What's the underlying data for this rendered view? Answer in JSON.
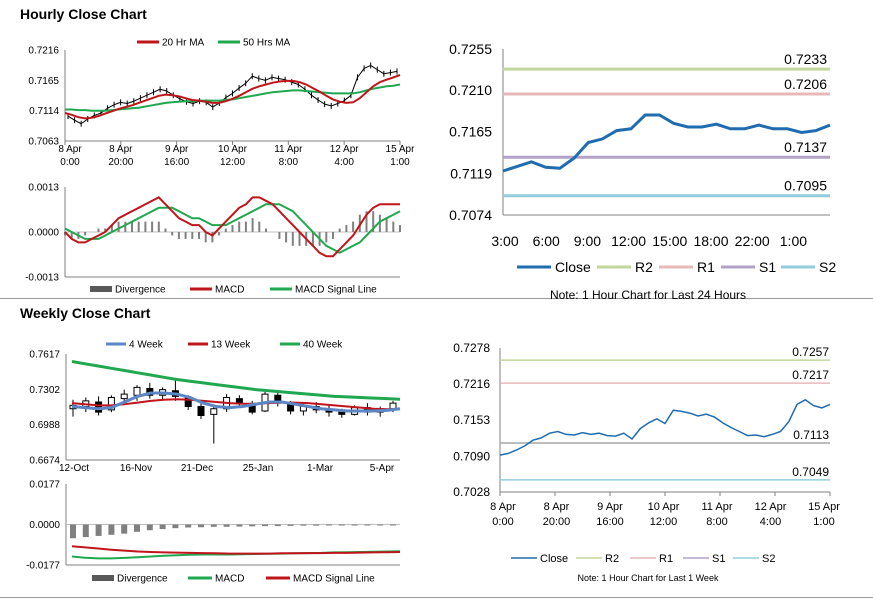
{
  "sections": {
    "hourly_title": "Hourly Close Chart",
    "weekly_title": "Weekly Close Chart"
  },
  "colors": {
    "ma20": "#c0151b",
    "ma50": "#1fa84f",
    "macd_red": "#c0151b",
    "macd_green": "#1fa84f",
    "close_blue": "#1f6cb0",
    "avg4_blue": "#5b87c6",
    "r2": "#c3d69b",
    "r1": "#e6b9b8",
    "s1": "#b3a2c7",
    "s2": "#93cddd",
    "bar_grey": "#808080"
  },
  "chart_data": [
    {
      "id": "hourly_price",
      "type": "line",
      "legend": [
        "20 Hr MA",
        "50 Hrs MA"
      ],
      "y_ticks": [
        "0.7216",
        "0.7165",
        "0.7114",
        "0.7063"
      ],
      "ylim": [
        0.7063,
        0.7216
      ],
      "x_ticks": [
        [
          "8 Apr",
          "0:00"
        ],
        [
          "8 Apr",
          "20:00"
        ],
        [
          "9 Apr",
          "16:00"
        ],
        [
          "10 Apr",
          "12:00"
        ],
        [
          "11 Apr",
          "8:00"
        ],
        [
          "12 Apr",
          "4:00"
        ],
        [
          "15 Apr",
          "1:00"
        ]
      ],
      "close": [
        0.7105,
        0.7098,
        0.7092,
        0.71,
        0.7106,
        0.711,
        0.7118,
        0.7124,
        0.7128,
        0.7126,
        0.713,
        0.7135,
        0.714,
        0.7145,
        0.715,
        0.7147,
        0.714,
        0.7134,
        0.7129,
        0.7126,
        0.713,
        0.7128,
        0.712,
        0.7127,
        0.7136,
        0.7143,
        0.7152,
        0.716,
        0.7172,
        0.7168,
        0.7165,
        0.717,
        0.7168,
        0.7166,
        0.7162,
        0.7158,
        0.715,
        0.714,
        0.7132,
        0.7125,
        0.7122,
        0.7126,
        0.7131,
        0.714,
        0.717,
        0.7185,
        0.719,
        0.7183,
        0.7176,
        0.7178,
        0.718
      ],
      "ma20": [
        0.711,
        0.7107,
        0.7103,
        0.7101,
        0.7102,
        0.7105,
        0.7109,
        0.7113,
        0.7117,
        0.712,
        0.7123,
        0.7127,
        0.7131,
        0.7135,
        0.7139,
        0.7141,
        0.714,
        0.7138,
        0.7135,
        0.7132,
        0.7131,
        0.7129,
        0.7127,
        0.7127,
        0.713,
        0.7134,
        0.7139,
        0.7145,
        0.7151,
        0.7155,
        0.7158,
        0.7161,
        0.7163,
        0.7164,
        0.7164,
        0.7162,
        0.7158,
        0.7152,
        0.7146,
        0.7139,
        0.7133,
        0.7129,
        0.7127,
        0.7128,
        0.7135,
        0.7145,
        0.7155,
        0.7162,
        0.7166,
        0.717,
        0.7174
      ],
      "ma50": [
        0.7116,
        0.7116,
        0.7115,
        0.7115,
        0.7114,
        0.7114,
        0.7114,
        0.7115,
        0.7116,
        0.7117,
        0.7118,
        0.7119,
        0.7121,
        0.7123,
        0.7125,
        0.7127,
        0.7128,
        0.7129,
        0.713,
        0.713,
        0.7131,
        0.7131,
        0.7131,
        0.7131,
        0.7132,
        0.7133,
        0.7135,
        0.7137,
        0.7139,
        0.7141,
        0.7143,
        0.7145,
        0.7146,
        0.7147,
        0.7148,
        0.7148,
        0.7147,
        0.7146,
        0.7145,
        0.7144,
        0.7143,
        0.7143,
        0.7143,
        0.7143,
        0.7145,
        0.7148,
        0.7151,
        0.7153,
        0.7155,
        0.7156,
        0.7158
      ]
    },
    {
      "id": "hourly_macd",
      "type": "line",
      "legend": [
        "Divergence",
        "MACD",
        "MACD Signal Line"
      ],
      "y_ticks": [
        "0.0013",
        "0.0000",
        "-0.0013"
      ],
      "ylim": [
        -0.0013,
        0.0013
      ],
      "macd": [
        0.0,
        -0.0002,
        -0.0003,
        -0.0003,
        -0.0002,
        -0.0001,
        0.0,
        0.0002,
        0.0004,
        0.0005,
        0.0006,
        0.0007,
        0.0008,
        0.0009,
        0.001,
        0.0008,
        0.0006,
        0.0004,
        0.0003,
        0.0002,
        0.0002,
        0.0,
        -0.0001,
        0.0001,
        0.0003,
        0.0005,
        0.0007,
        0.0008,
        0.001,
        0.001,
        0.0009,
        0.0008,
        0.0006,
        0.0004,
        0.0002,
        0.0,
        -0.0002,
        -0.0004,
        -0.0006,
        -0.0007,
        -0.0007,
        -0.0005,
        -0.0003,
        -0.0001,
        0.0002,
        0.0005,
        0.0007,
        0.0008,
        0.0008,
        0.0008,
        0.0008
      ],
      "signal": [
        0.0001,
        0.0,
        -0.0001,
        -0.0002,
        -0.0002,
        -0.0002,
        -0.0001,
        0.0,
        0.0001,
        0.0002,
        0.0003,
        0.0004,
        0.0005,
        0.0006,
        0.0007,
        0.0007,
        0.0007,
        0.0006,
        0.0005,
        0.0004,
        0.0004,
        0.0003,
        0.0002,
        0.0002,
        0.0002,
        0.0003,
        0.0004,
        0.0005,
        0.0006,
        0.0007,
        0.0008,
        0.0008,
        0.0008,
        0.0007,
        0.0006,
        0.0004,
        0.0002,
        0.0,
        -0.0002,
        -0.0004,
        -0.0005,
        -0.0006,
        -0.0005,
        -0.0004,
        -0.0003,
        -0.0001,
        0.0001,
        0.0003,
        0.0004,
        0.0005,
        0.0006
      ]
    },
    {
      "id": "hourly_pivot",
      "type": "line",
      "y_ticks": [
        "0.7255",
        "0.7210",
        "0.7165",
        "0.7119",
        "0.7074"
      ],
      "ylim": [
        0.7074,
        0.7255
      ],
      "x_ticks": [
        "3:00",
        "6:00",
        "9:00",
        "12:00",
        "15:00",
        "18:00",
        "22:00",
        "1:00"
      ],
      "close": [
        0.7122,
        0.7127,
        0.7132,
        0.7126,
        0.7125,
        0.7136,
        0.7153,
        0.7157,
        0.7166,
        0.7168,
        0.7183,
        0.7183,
        0.7174,
        0.717,
        0.717,
        0.7173,
        0.7168,
        0.7168,
        0.7172,
        0.7168,
        0.7168,
        0.7164,
        0.7166,
        0.7172
      ],
      "levels": [
        {
          "name": "R2",
          "value": 0.7233,
          "label": "0.7233"
        },
        {
          "name": "R1",
          "value": 0.7206,
          "label": "0.7206"
        },
        {
          "name": "S1",
          "value": 0.7137,
          "label": "0.7137"
        },
        {
          "name": "S2",
          "value": 0.7095,
          "label": "0.7095"
        }
      ],
      "legend": [
        "Close",
        "R2",
        "R1",
        "S1",
        "S2"
      ],
      "note": "Note: 1 Hour Chart for Last 24 Hours"
    },
    {
      "id": "weekly_price",
      "type": "line",
      "legend": [
        "4 Week",
        "13 Week",
        "40 Week"
      ],
      "y_ticks": [
        "0.7617",
        "0.7302",
        "0.6988",
        "0.6674"
      ],
      "ylim": [
        0.6674,
        0.7617
      ],
      "x_ticks": [
        "12-Oct",
        "16-Nov",
        "21-Dec",
        "25-Jan",
        "1-Mar",
        "5-Apr"
      ],
      "candles": [
        {
          "o": 0.713,
          "h": 0.721,
          "l": 0.706,
          "c": 0.716
        },
        {
          "o": 0.715,
          "h": 0.723,
          "l": 0.71,
          "c": 0.72
        },
        {
          "o": 0.719,
          "h": 0.724,
          "l": 0.707,
          "c": 0.71
        },
        {
          "o": 0.712,
          "h": 0.725,
          "l": 0.71,
          "c": 0.723
        },
        {
          "o": 0.722,
          "h": 0.73,
          "l": 0.718,
          "c": 0.726
        },
        {
          "o": 0.725,
          "h": 0.734,
          "l": 0.72,
          "c": 0.732
        },
        {
          "o": 0.731,
          "h": 0.736,
          "l": 0.722,
          "c": 0.725
        },
        {
          "o": 0.725,
          "h": 0.732,
          "l": 0.721,
          "c": 0.73
        },
        {
          "o": 0.729,
          "h": 0.74,
          "l": 0.72,
          "c": 0.724
        },
        {
          "o": 0.723,
          "h": 0.725,
          "l": 0.712,
          "c": 0.715
        },
        {
          "o": 0.715,
          "h": 0.718,
          "l": 0.704,
          "c": 0.707
        },
        {
          "o": 0.708,
          "h": 0.715,
          "l": 0.682,
          "c": 0.713
        },
        {
          "o": 0.713,
          "h": 0.726,
          "l": 0.71,
          "c": 0.723
        },
        {
          "o": 0.722,
          "h": 0.725,
          "l": 0.714,
          "c": 0.718
        },
        {
          "o": 0.717,
          "h": 0.72,
          "l": 0.708,
          "c": 0.71
        },
        {
          "o": 0.711,
          "h": 0.728,
          "l": 0.71,
          "c": 0.726
        },
        {
          "o": 0.725,
          "h": 0.729,
          "l": 0.715,
          "c": 0.718
        },
        {
          "o": 0.717,
          "h": 0.72,
          "l": 0.708,
          "c": 0.711
        },
        {
          "o": 0.711,
          "h": 0.718,
          "l": 0.707,
          "c": 0.715
        },
        {
          "o": 0.715,
          "h": 0.719,
          "l": 0.709,
          "c": 0.712
        },
        {
          "o": 0.712,
          "h": 0.717,
          "l": 0.706,
          "c": 0.71
        },
        {
          "o": 0.71,
          "h": 0.713,
          "l": 0.705,
          "c": 0.708
        },
        {
          "o": 0.708,
          "h": 0.716,
          "l": 0.707,
          "c": 0.714
        },
        {
          "o": 0.714,
          "h": 0.718,
          "l": 0.707,
          "c": 0.71
        },
        {
          "o": 0.71,
          "h": 0.715,
          "l": 0.706,
          "c": 0.713
        },
        {
          "o": 0.713,
          "h": 0.72,
          "l": 0.71,
          "c": 0.718
        }
      ],
      "avg4": [
        0.715,
        0.714,
        0.713,
        0.714,
        0.719,
        0.724,
        0.727,
        0.727,
        0.726,
        0.723,
        0.718,
        0.715,
        0.714,
        0.715,
        0.717,
        0.719,
        0.719,
        0.717,
        0.715,
        0.713,
        0.712,
        0.711,
        0.711,
        0.711,
        0.7115,
        0.713
      ],
      "ma13": [
        0.718,
        0.717,
        0.716,
        0.716,
        0.717,
        0.7185,
        0.72,
        0.721,
        0.7215,
        0.721,
        0.72,
        0.719,
        0.718,
        0.7175,
        0.7175,
        0.718,
        0.7185,
        0.7185,
        0.718,
        0.717,
        0.716,
        0.715,
        0.714,
        0.713,
        0.7125,
        0.713
      ],
      "ma40": [
        0.755,
        0.753,
        0.751,
        0.749,
        0.747,
        0.745,
        0.743,
        0.741,
        0.739,
        0.7375,
        0.736,
        0.7345,
        0.733,
        0.7315,
        0.73,
        0.729,
        0.728,
        0.727,
        0.726,
        0.725,
        0.724,
        0.7235,
        0.723,
        0.7225,
        0.722,
        0.7215
      ]
    },
    {
      "id": "weekly_macd",
      "type": "bar",
      "legend": [
        "Divergence",
        "MACD",
        "MACD Signal Line"
      ],
      "y_ticks": [
        "0.0177",
        "0.0000",
        "-0.0177"
      ],
      "ylim": [
        -0.0177,
        0.0177
      ],
      "divergence": [
        -0.006,
        -0.0055,
        -0.005,
        -0.0045,
        -0.004,
        -0.0032,
        -0.0025,
        -0.002,
        -0.0016,
        -0.0013,
        -0.0012,
        -0.001,
        -0.001,
        -0.0009,
        -0.0008,
        -0.0007,
        -0.0007,
        -0.0006,
        -0.0005,
        -0.0005,
        -0.0004,
        -0.0004,
        -0.0003,
        -0.0003,
        -0.0002,
        -0.0002
      ],
      "macd": [
        -0.014,
        -0.0145,
        -0.0148,
        -0.0148,
        -0.0146,
        -0.0143,
        -0.014,
        -0.0137,
        -0.0134,
        -0.0132,
        -0.0131,
        -0.0131,
        -0.0131,
        -0.013,
        -0.0129,
        -0.0128,
        -0.0127,
        -0.0126,
        -0.0125,
        -0.0124,
        -0.0122,
        -0.0121,
        -0.012,
        -0.0119,
        -0.0118,
        -0.0117
      ],
      "signal": [
        -0.0095,
        -0.01,
        -0.0105,
        -0.011,
        -0.0114,
        -0.0118,
        -0.012,
        -0.0122,
        -0.0123,
        -0.0124,
        -0.0125,
        -0.0126,
        -0.0127,
        -0.0127,
        -0.0127,
        -0.0127,
        -0.0126,
        -0.0126,
        -0.0125,
        -0.0125,
        -0.0124,
        -0.0124,
        -0.0123,
        -0.0122,
        -0.0121,
        -0.012
      ]
    },
    {
      "id": "weekly_pivot",
      "type": "line",
      "y_ticks": [
        "0.7278",
        "0.7216",
        "0.7153",
        "0.7090",
        "0.7028"
      ],
      "ylim": [
        0.7028,
        0.7278
      ],
      "x_ticks": [
        [
          "8 Apr",
          "0:00"
        ],
        [
          "8 Apr",
          "20:00"
        ],
        [
          "9 Apr",
          "16:00"
        ],
        [
          "10 Apr",
          "12:00"
        ],
        [
          "11 Apr",
          "8:00"
        ],
        [
          "12 Apr",
          "4:00"
        ],
        [
          "15 Apr",
          "1:00"
        ]
      ],
      "close": [
        0.7092,
        0.7095,
        0.7101,
        0.7108,
        0.7118,
        0.7122,
        0.713,
        0.7133,
        0.7128,
        0.7127,
        0.7131,
        0.7128,
        0.713,
        0.7126,
        0.7125,
        0.713,
        0.712,
        0.7138,
        0.7148,
        0.7155,
        0.7147,
        0.717,
        0.7168,
        0.7165,
        0.716,
        0.7163,
        0.7158,
        0.7148,
        0.714,
        0.7133,
        0.7126,
        0.7127,
        0.7124,
        0.7128,
        0.7133,
        0.715,
        0.718,
        0.7188,
        0.7178,
        0.7174,
        0.718
      ],
      "levels": [
        {
          "name": "R2",
          "value": 0.7257,
          "label": "0.7257"
        },
        {
          "name": "R1",
          "value": 0.7217,
          "label": "0.7217"
        },
        {
          "name": "S1",
          "value": 0.7113,
          "label": "0.7113"
        },
        {
          "name": "S2",
          "value": 0.7049,
          "label": "0.7049"
        }
      ],
      "legend": [
        "Close",
        "R2",
        "R1",
        "S1",
        "S2"
      ],
      "note": "Note: 1 Hour Chart for Last 1 Week"
    }
  ]
}
